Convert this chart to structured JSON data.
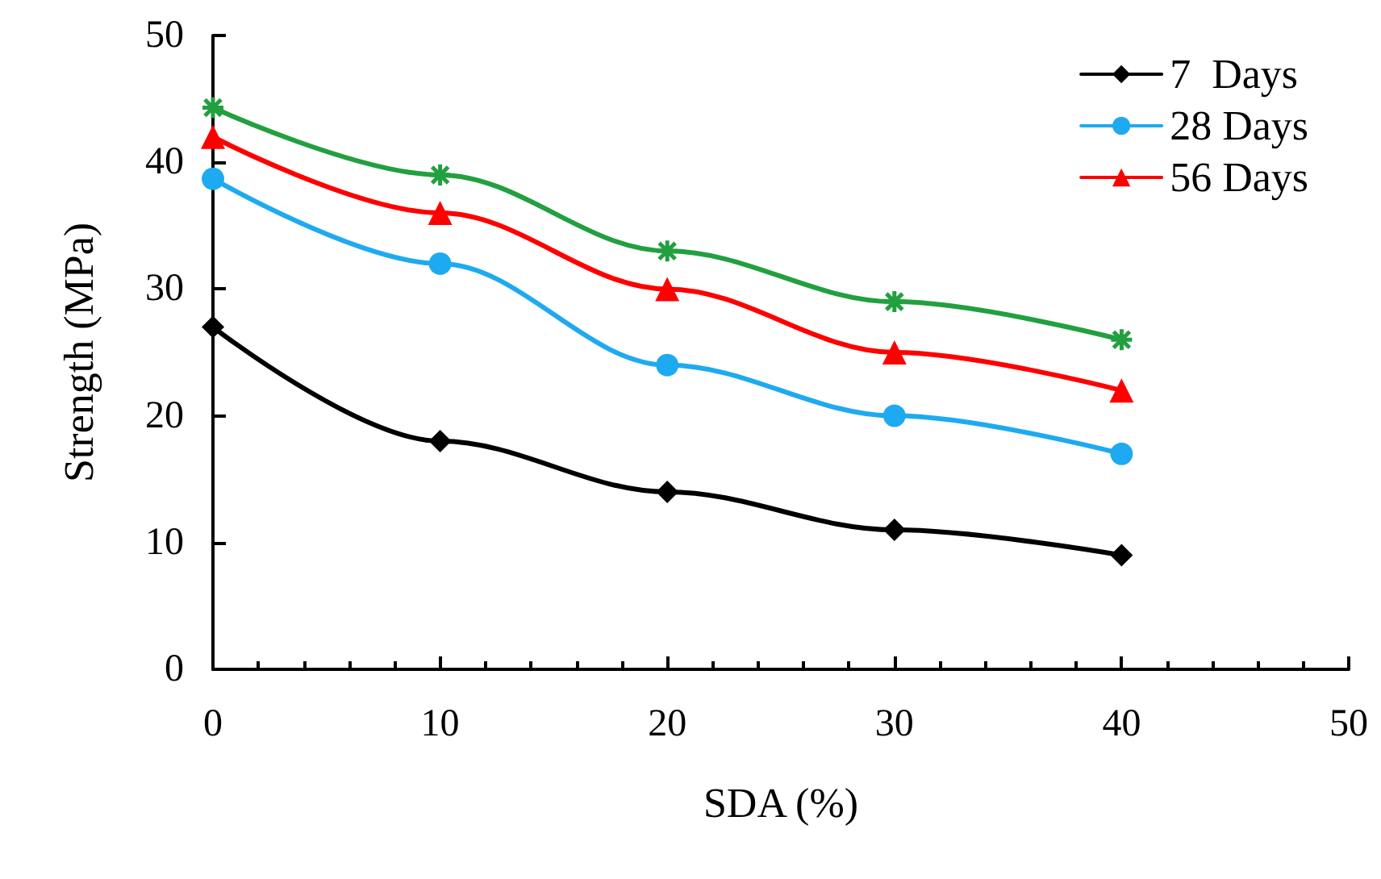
{
  "chart_data": {
    "type": "line",
    "xlabel": "SDA (%)",
    "ylabel": "Strength (MPa)",
    "x": [
      0,
      10,
      20,
      30,
      40
    ],
    "series": [
      {
        "name": "7  Days",
        "color": "#000000",
        "marker": "diamond",
        "values": [
          27,
          18,
          14,
          11,
          9
        ]
      },
      {
        "name": "28 Days",
        "color": "#1eaaf0",
        "marker": "circle",
        "values": [
          38.7,
          32,
          24,
          20,
          17
        ]
      },
      {
        "name": "56 Days",
        "color": "#ff0000",
        "marker": "triangle",
        "values": [
          42,
          36,
          30,
          25,
          22
        ]
      },
      {
        "color": "#22a040",
        "marker": "cross",
        "values": [
          44.3,
          39,
          33,
          29,
          26
        ]
      }
    ],
    "xlim": [
      0,
      50
    ],
    "xticks": [
      0,
      10,
      20,
      30,
      40,
      50
    ],
    "ylim": [
      0,
      50
    ],
    "yticks": [
      0,
      10,
      20,
      30,
      40,
      50
    ],
    "grid": false,
    "legend": "top right"
  }
}
